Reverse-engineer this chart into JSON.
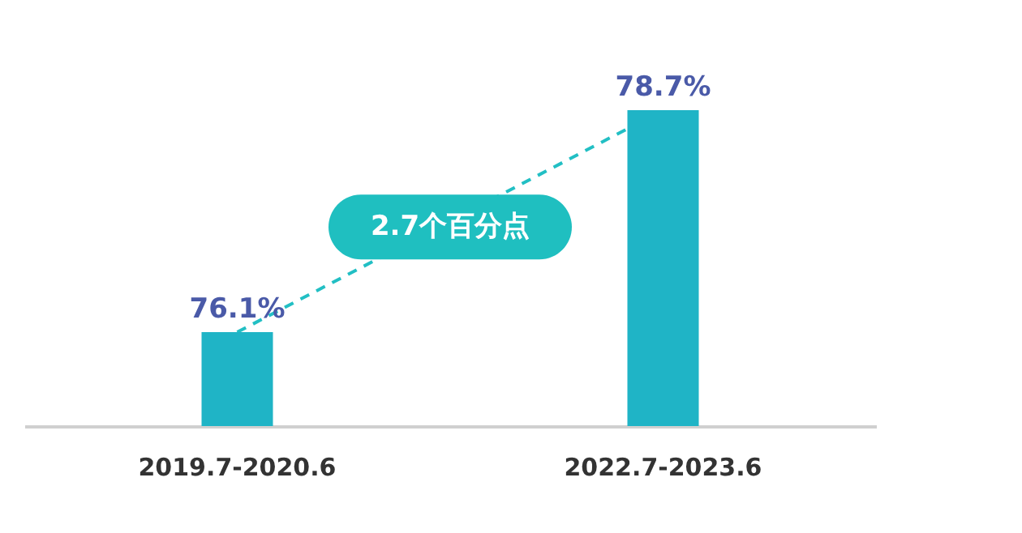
{
  "chart_data": {
    "type": "bar",
    "categories": [
      "2019.7-2020.6",
      "2022.7-2023.6"
    ],
    "values": [
      76.1,
      78.7
    ],
    "value_labels": [
      "76.1%",
      "78.7%"
    ],
    "color": "#1fb4c6",
    "ylim": [
      75,
      78.7
    ],
    "tick_labels": "x",
    "grid": false,
    "annotations": [
      "2.7个百分点"
    ]
  }
}
